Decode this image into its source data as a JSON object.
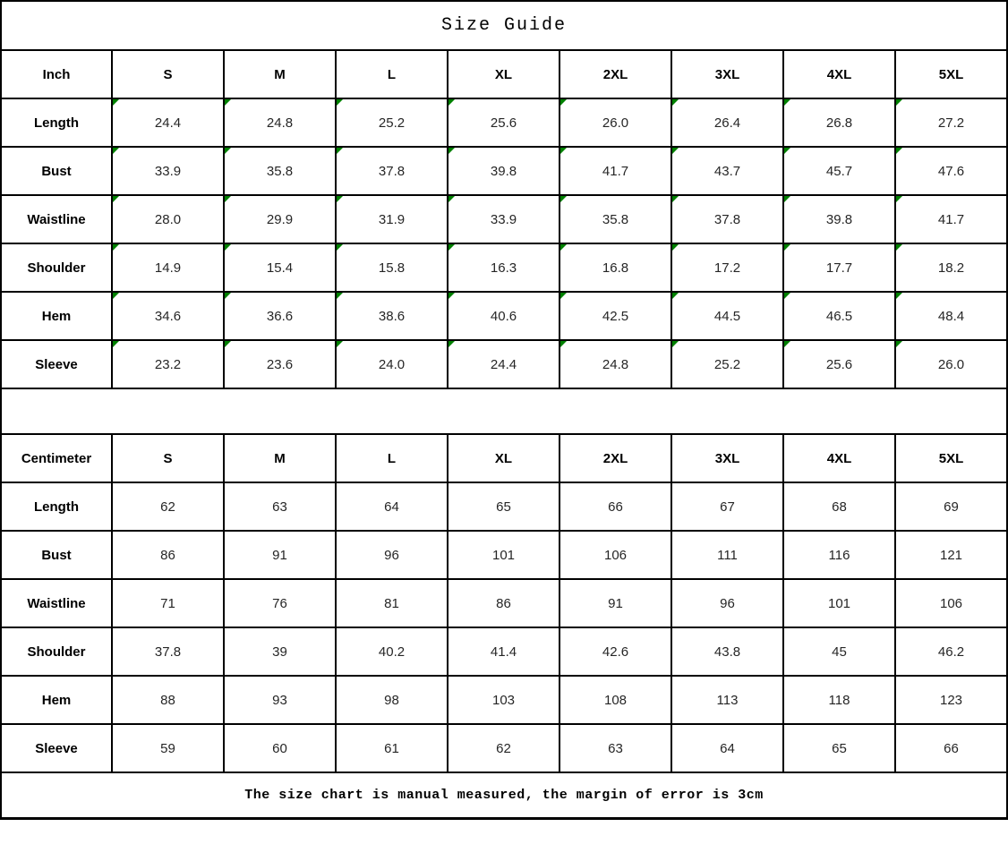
{
  "title": "Size Guide",
  "footer_note": "The size chart is manual measured, the margin of error is 3cm",
  "size_columns": [
    "S",
    "M",
    "L",
    "XL",
    "2XL",
    "3XL",
    "4XL",
    "5XL"
  ],
  "tables": [
    {
      "unit_label": "Inch",
      "has_cell_markers": true,
      "rows": [
        {
          "label": "Length",
          "values": [
            "24.4",
            "24.8",
            "25.2",
            "25.6",
            "26.0",
            "26.4",
            "26.8",
            "27.2"
          ]
        },
        {
          "label": "Bust",
          "values": [
            "33.9",
            "35.8",
            "37.8",
            "39.8",
            "41.7",
            "43.7",
            "45.7",
            "47.6"
          ]
        },
        {
          "label": "Waistline",
          "values": [
            "28.0",
            "29.9",
            "31.9",
            "33.9",
            "35.8",
            "37.8",
            "39.8",
            "41.7"
          ]
        },
        {
          "label": "Shoulder",
          "values": [
            "14.9",
            "15.4",
            "15.8",
            "16.3",
            "16.8",
            "17.2",
            "17.7",
            "18.2"
          ]
        },
        {
          "label": "Hem",
          "values": [
            "34.6",
            "36.6",
            "38.6",
            "40.6",
            "42.5",
            "44.5",
            "46.5",
            "48.4"
          ]
        },
        {
          "label": "Sleeve",
          "values": [
            "23.2",
            "23.6",
            "24.0",
            "24.4",
            "24.8",
            "25.2",
            "25.6",
            "26.0"
          ]
        }
      ]
    },
    {
      "unit_label": "Centimeter",
      "has_cell_markers": false,
      "rows": [
        {
          "label": "Length",
          "values": [
            "62",
            "63",
            "64",
            "65",
            "66",
            "67",
            "68",
            "69"
          ]
        },
        {
          "label": "Bust",
          "values": [
            "86",
            "91",
            "96",
            "101",
            "106",
            "111",
            "116",
            "121"
          ]
        },
        {
          "label": "Waistline",
          "values": [
            "71",
            "76",
            "81",
            "86",
            "91",
            "96",
            "101",
            "106"
          ]
        },
        {
          "label": "Shoulder",
          "values": [
            "37.8",
            "39",
            "40.2",
            "41.4",
            "42.6",
            "43.8",
            "45",
            "46.2"
          ]
        },
        {
          "label": "Hem",
          "values": [
            "88",
            "93",
            "98",
            "103",
            "108",
            "113",
            "118",
            "123"
          ]
        },
        {
          "label": "Sleeve",
          "values": [
            "59",
            "60",
            "61",
            "62",
            "63",
            "64",
            "65",
            "66"
          ]
        }
      ]
    }
  ],
  "colors": {
    "cell_marker_green": "#008000",
    "border": "#000000",
    "value_text": "#262626"
  }
}
